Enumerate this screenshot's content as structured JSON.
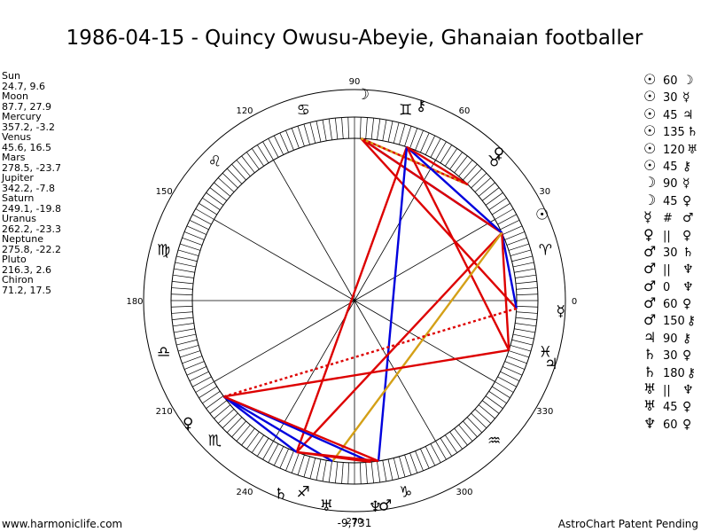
{
  "title": "1986-04-15 - Quincy Owusu-Abeyie, Ghanaian footballer",
  "planets": [
    {
      "name": "Sun",
      "coords": "24.7, 9.6",
      "lon": 24.7,
      "glyph": "☉"
    },
    {
      "name": "Moon",
      "coords": "87.7, 27.9",
      "lon": 87.7,
      "glyph": "☽"
    },
    {
      "name": "Mercury",
      "coords": "357.2, -3.2",
      "lon": 357.2,
      "glyph": "☿"
    },
    {
      "name": "Venus",
      "coords": "45.6, 16.5",
      "lon": 45.6,
      "glyph": "♀"
    },
    {
      "name": "Mars",
      "coords": "278.5, -23.7",
      "lon": 278.5,
      "glyph": "♂"
    },
    {
      "name": "Jupiter",
      "coords": "342.2, -7.8",
      "lon": 342.2,
      "glyph": "♃"
    },
    {
      "name": "Saturn",
      "coords": "249.1, -19.8",
      "lon": 249.1,
      "glyph": "♄"
    },
    {
      "name": "Uranus",
      "coords": "262.2, -23.3",
      "lon": 262.2,
      "glyph": "♅"
    },
    {
      "name": "Neptune",
      "coords": "275.8, -22.2",
      "lon": 275.8,
      "glyph": "♆"
    },
    {
      "name": "Pluto",
      "coords": "216.3, 2.6",
      "lon": 216.3,
      "glyph": "♀"
    },
    {
      "name": "Chiron",
      "coords": "71.2, 17.5",
      "lon": 71.2,
      "glyph": "⚷"
    }
  ],
  "aspects": [
    {
      "p1": "☉",
      "angle": "60",
      "p2": "☽"
    },
    {
      "p1": "☉",
      "angle": "30",
      "p2": "☿"
    },
    {
      "p1": "☉",
      "angle": "45",
      "p2": "♃"
    },
    {
      "p1": "☉",
      "angle": "135",
      "p2": "♄"
    },
    {
      "p1": "☉",
      "angle": "120",
      "p2": "♅"
    },
    {
      "p1": "☉",
      "angle": "45",
      "p2": "⚷"
    },
    {
      "p1": "☽",
      "angle": "90",
      "p2": "☿"
    },
    {
      "p1": "☽",
      "angle": "45",
      "p2": "♀"
    },
    {
      "p1": "☿",
      "angle": "#",
      "p2": "♂"
    },
    {
      "p1": "♀",
      "angle": "||",
      "p2": "♀"
    },
    {
      "p1": "♂",
      "angle": "30",
      "p2": "♄"
    },
    {
      "p1": "♂",
      "angle": "||",
      "p2": "♆"
    },
    {
      "p1": "♂",
      "angle": "0",
      "p2": "♆"
    },
    {
      "p1": "♂",
      "angle": "60",
      "p2": "♀"
    },
    {
      "p1": "♂",
      "angle": "150",
      "p2": "⚷"
    },
    {
      "p1": "♃",
      "angle": "90",
      "p2": "⚷"
    },
    {
      "p1": "♄",
      "angle": "30",
      "p2": "♀"
    },
    {
      "p1": "♄",
      "angle": "180",
      "p2": "⚷"
    },
    {
      "p1": "♅",
      "angle": "||",
      "p2": "♆"
    },
    {
      "p1": "♅",
      "angle": "45",
      "p2": "♀"
    },
    {
      "p1": "♆",
      "angle": "60",
      "p2": "♀"
    }
  ],
  "wheel": {
    "degree_labels": [
      "0",
      "30",
      "60",
      "90",
      "120",
      "150",
      "180",
      "210",
      "240",
      "270",
      "300",
      "330"
    ],
    "sign_glyphs": [
      "♈",
      "♉",
      "♊",
      "♋",
      "♌",
      "♍",
      "♎",
      "♏",
      "♐",
      "♑",
      "♒",
      "♓"
    ],
    "cusp_value": "-9,731"
  },
  "aspect_lines": [
    {
      "from": "Moon",
      "to": "Venus",
      "color": "#dd0000",
      "dashed": false
    },
    {
      "from": "Moon",
      "to": "Sun",
      "color": "#0000dd",
      "dashed": false
    },
    {
      "from": "Moon",
      "to": "Sun",
      "color": "#dd0000",
      "dashed": false
    },
    {
      "from": "Moon",
      "to": "Mercury",
      "color": "#dd0000",
      "dashed": false
    },
    {
      "from": "Moon",
      "to": "Venus",
      "color": "#d4a017",
      "dashed": true
    },
    {
      "from": "Chiron",
      "to": "Sun",
      "color": "#0000dd",
      "dashed": false
    },
    {
      "from": "Chiron",
      "to": "Jupiter",
      "color": "#dd0000",
      "dashed": false
    },
    {
      "from": "Chiron",
      "to": "Saturn",
      "color": "#dd0000",
      "dashed": false
    },
    {
      "from": "Chiron",
      "to": "Mars",
      "color": "#0000dd",
      "dashed": false
    },
    {
      "from": "Chiron",
      "to": "Venus",
      "color": "#dd0000",
      "dashed": false
    },
    {
      "from": "Sun",
      "to": "Mercury",
      "color": "#0000dd",
      "dashed": false
    },
    {
      "from": "Sun",
      "to": "Jupiter",
      "color": "#dd0000",
      "dashed": false
    },
    {
      "from": "Sun",
      "to": "Saturn",
      "color": "#dd0000",
      "dashed": false
    },
    {
      "from": "Sun",
      "to": "Uranus",
      "color": "#d4a017",
      "dashed": false
    },
    {
      "from": "Mercury",
      "to": "Pluto",
      "color": "#dd0000",
      "dashed": true
    },
    {
      "from": "Jupiter",
      "to": "Pluto",
      "color": "#dd0000",
      "dashed": false
    },
    {
      "from": "Pluto",
      "to": "Saturn",
      "color": "#0000dd",
      "dashed": false
    },
    {
      "from": "Pluto",
      "to": "Uranus",
      "color": "#0000dd",
      "dashed": false
    },
    {
      "from": "Pluto",
      "to": "Neptune",
      "color": "#0000dd",
      "dashed": false
    },
    {
      "from": "Pluto",
      "to": "Mars",
      "color": "#dd0000",
      "dashed": false
    },
    {
      "from": "Saturn",
      "to": "Mars",
      "color": "#dd0000",
      "dashed": false
    },
    {
      "from": "Saturn",
      "to": "Neptune",
      "color": "#dd0000",
      "dashed": false
    }
  ],
  "footer": {
    "left": "www.harmoniclife.com",
    "right": "AstroChart Patent Pending"
  }
}
